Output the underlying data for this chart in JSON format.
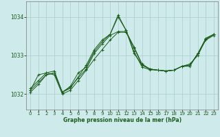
{
  "title": "Graphe pression niveau de la mer (hPa)",
  "bg_color": "#ceeaea",
  "grid_color": "#aacccc",
  "line_color": "#1a5c1a",
  "xlim": [
    -0.5,
    23.5
  ],
  "ylim": [
    1031.6,
    1034.4
  ],
  "yticks": [
    1032,
    1033,
    1034
  ],
  "xticks": [
    0,
    1,
    2,
    3,
    4,
    5,
    6,
    7,
    8,
    9,
    10,
    11,
    12,
    13,
    14,
    15,
    16,
    17,
    18,
    19,
    20,
    21,
    22,
    23
  ],
  "series": [
    {
      "x": [
        0,
        1,
        2,
        3,
        4,
        5,
        6,
        7,
        8,
        9,
        10,
        11,
        12,
        13,
        14,
        15,
        16,
        17,
        18,
        19,
        20,
        21,
        22,
        23
      ],
      "y": [
        1032.05,
        1032.25,
        1032.5,
        1032.55,
        1032.05,
        1032.2,
        1032.55,
        1032.7,
        1033.1,
        1033.35,
        1033.55,
        1034.0,
        1033.65,
        1033.05,
        1032.75,
        1032.65,
        1032.62,
        1032.6,
        1032.62,
        1032.72,
        1032.75,
        1033.05,
        1033.45,
        1033.55
      ]
    },
    {
      "x": [
        0,
        1,
        2,
        3,
        4,
        5,
        6,
        7,
        8,
        9,
        10,
        11,
        12,
        13,
        14,
        15,
        16,
        17,
        18,
        19,
        20,
        21,
        22,
        23
      ],
      "y": [
        1032.1,
        1032.5,
        1032.55,
        1032.5,
        1032.0,
        1032.1,
        1032.35,
        1032.62,
        1032.9,
        1033.15,
        1033.4,
        1033.6,
        1033.6,
        1033.2,
        1032.75,
        1032.65,
        1032.62,
        1032.6,
        1032.62,
        1032.72,
        1032.72,
        1033.05,
        1033.4,
        1033.52
      ]
    },
    {
      "x": [
        0,
        1,
        2,
        3,
        4,
        5,
        7,
        8,
        9,
        10,
        11,
        12,
        13,
        14,
        15,
        16,
        17,
        18,
        19,
        20,
        21,
        22,
        23
      ],
      "y": [
        1032.15,
        1032.35,
        1032.55,
        1032.6,
        1032.05,
        1032.15,
        1032.75,
        1033.15,
        1033.4,
        1033.55,
        1034.05,
        1033.65,
        1033.1,
        1032.7,
        1032.63,
        1032.62,
        1032.6,
        1032.62,
        1032.72,
        1032.78,
        1033.0,
        1033.42,
        1033.55
      ]
    },
    {
      "x": [
        0,
        2,
        3,
        4,
        5,
        6,
        7,
        8,
        9,
        10,
        11,
        12,
        13,
        14,
        15,
        16,
        17,
        18,
        19,
        20,
        21,
        22,
        23
      ],
      "y": [
        1032.1,
        1032.5,
        1032.55,
        1032.05,
        1032.18,
        1032.42,
        1032.65,
        1033.05,
        1033.3,
        1033.52,
        1033.62,
        1033.62,
        1033.22,
        1032.78,
        1032.65,
        1032.62,
        1032.6,
        1032.62,
        1032.72,
        1032.75,
        1033.05,
        1033.42,
        1033.55
      ]
    }
  ]
}
